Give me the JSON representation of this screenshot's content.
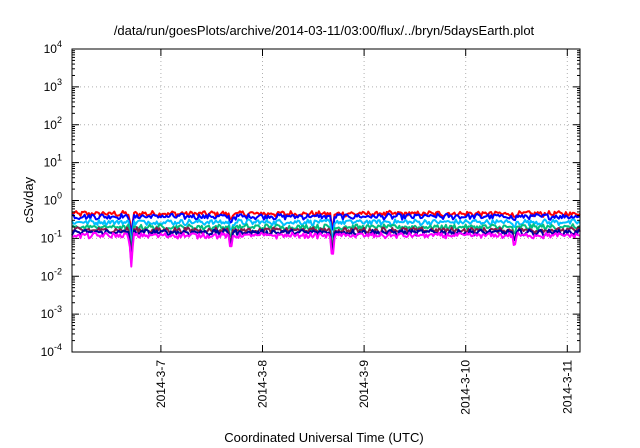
{
  "chart_data": {
    "type": "line",
    "title": "/data/run/goesPlots/archive/2014-03-11/03:00/flux/../bryn/5daysEarth.plot",
    "xlabel": "Coordinated Universal Time (UTC)",
    "ylabel": "cSv/day",
    "yscale": "log",
    "ylim": [
      0.0001,
      10000
    ],
    "yticks": [
      {
        "value": 0.0001,
        "base": "10",
        "exp": "-4"
      },
      {
        "value": 0.001,
        "base": "10",
        "exp": "-3"
      },
      {
        "value": 0.01,
        "base": "10",
        "exp": "-2"
      },
      {
        "value": 0.1,
        "base": "10",
        "exp": "-1"
      },
      {
        "value": 1,
        "base": "10",
        "exp": "0"
      },
      {
        "value": 10,
        "base": "10",
        "exp": "1"
      },
      {
        "value": 100,
        "base": "10",
        "exp": "2"
      },
      {
        "value": 1000,
        "base": "10",
        "exp": "3"
      },
      {
        "value": 10000,
        "base": "10",
        "exp": "4"
      }
    ],
    "xlim": [
      "2014-03-06 03:00",
      "2014-03-11 03:00"
    ],
    "xticks": [
      {
        "date": "2014-03-07 00:00",
        "label": "2014-3-7"
      },
      {
        "date": "2014-03-08 00:00",
        "label": "2014-3-8"
      },
      {
        "date": "2014-03-09 00:00",
        "label": "2014-3-9"
      },
      {
        "date": "2014-03-10 00:00",
        "label": "2014-3-10"
      },
      {
        "date": "2014-03-11 00:00",
        "label": "2014-3-11"
      }
    ],
    "grid": true,
    "series": [
      {
        "color": "#ff0000",
        "level": 0.45
      },
      {
        "color": "#0000ff",
        "level": 0.38
      },
      {
        "color": "#00bfff",
        "level": 0.27
      },
      {
        "color": "#00c080",
        "level": 0.2
      },
      {
        "color": "#8b1a4a",
        "level": 0.165
      },
      {
        "color": "#0000a0",
        "level": 0.145
      },
      {
        "color": "#ff00ff",
        "level": 0.12
      }
    ],
    "dips": [
      {
        "date": "2014-03-06 17:00",
        "min": 0.018
      },
      {
        "date": "2014-03-07 16:30",
        "min": 0.045
      },
      {
        "date": "2014-03-08 16:30",
        "min": 0.025
      },
      {
        "date": "2014-03-10 11:30",
        "min": 0.055
      }
    ]
  }
}
